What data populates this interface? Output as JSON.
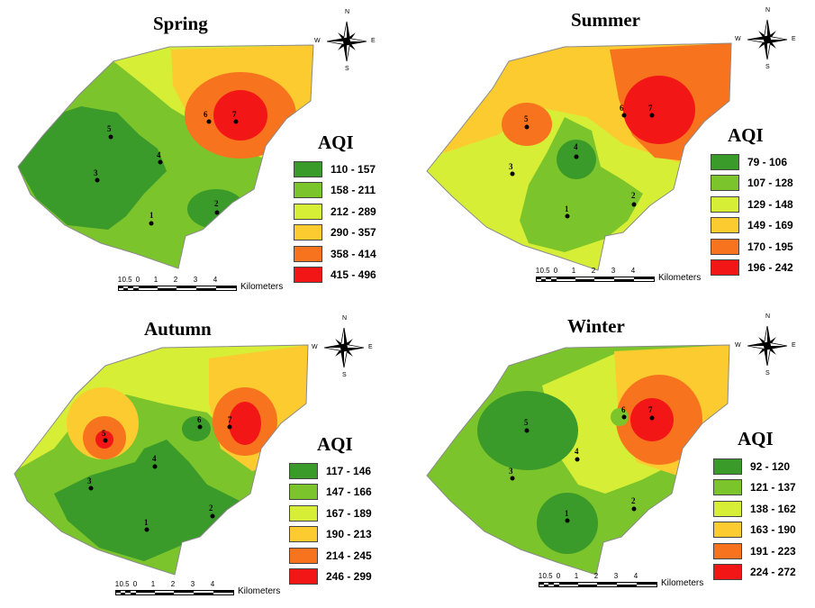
{
  "figure": {
    "legend_title": "AQI",
    "scale_ticks": [
      "1",
      "0.5",
      "0",
      "1",
      "2",
      "3",
      "4"
    ],
    "scale_unit": "Kilometers",
    "compass": {
      "n": "N",
      "s": "S",
      "e": "E",
      "w": "W"
    },
    "site_ids": [
      "1",
      "2",
      "3",
      "4",
      "5",
      "6",
      "7"
    ]
  },
  "palette": {
    "c1": "#3a9a2a",
    "c2": "#7cc42c",
    "c3": "#d6ee36",
    "c4": "#fccb30",
    "c5": "#f8731e",
    "c6": "#f31616",
    "outline": "#8a8a8a"
  },
  "panels": [
    {
      "season": "Spring",
      "legend": [
        {
          "range": "110 - 157",
          "color": "#3a9a2a"
        },
        {
          "range": "158 - 211",
          "color": "#7cc42c"
        },
        {
          "range": "212 - 289",
          "color": "#d6ee36"
        },
        {
          "range": "290 - 357",
          "color": "#fccb30"
        },
        {
          "range": "358 - 414",
          "color": "#f8731e"
        },
        {
          "range": "415 - 496",
          "color": "#f31616"
        }
      ]
    },
    {
      "season": "Summer",
      "legend": [
        {
          "range": "79 - 106",
          "color": "#3a9a2a"
        },
        {
          "range": "107 - 128",
          "color": "#7cc42c"
        },
        {
          "range": "129 - 148",
          "color": "#d6ee36"
        },
        {
          "range": "149 - 169",
          "color": "#fccb30"
        },
        {
          "range": "170 - 195",
          "color": "#f8731e"
        },
        {
          "range": "196 - 242",
          "color": "#f31616"
        }
      ]
    },
    {
      "season": "Autumn",
      "legend": [
        {
          "range": "117 - 146",
          "color": "#3a9a2a"
        },
        {
          "range": "147 - 166",
          "color": "#7cc42c"
        },
        {
          "range": "167 - 189",
          "color": "#d6ee36"
        },
        {
          "range": "190 - 213",
          "color": "#fccb30"
        },
        {
          "range": "214 - 245",
          "color": "#f8731e"
        },
        {
          "range": "246 - 299",
          "color": "#f31616"
        }
      ]
    },
    {
      "season": "Winter",
      "legend": [
        {
          "range": "92 - 120",
          "color": "#3a9a2a"
        },
        {
          "range": "121 - 137",
          "color": "#7cc42c"
        },
        {
          "range": "138 - 162",
          "color": "#d6ee36"
        },
        {
          "range": "163 - 190",
          "color": "#fccb30"
        },
        {
          "range": "191 - 223",
          "color": "#f8731e"
        },
        {
          "range": "224 - 272",
          "color": "#f31616"
        }
      ]
    }
  ]
}
